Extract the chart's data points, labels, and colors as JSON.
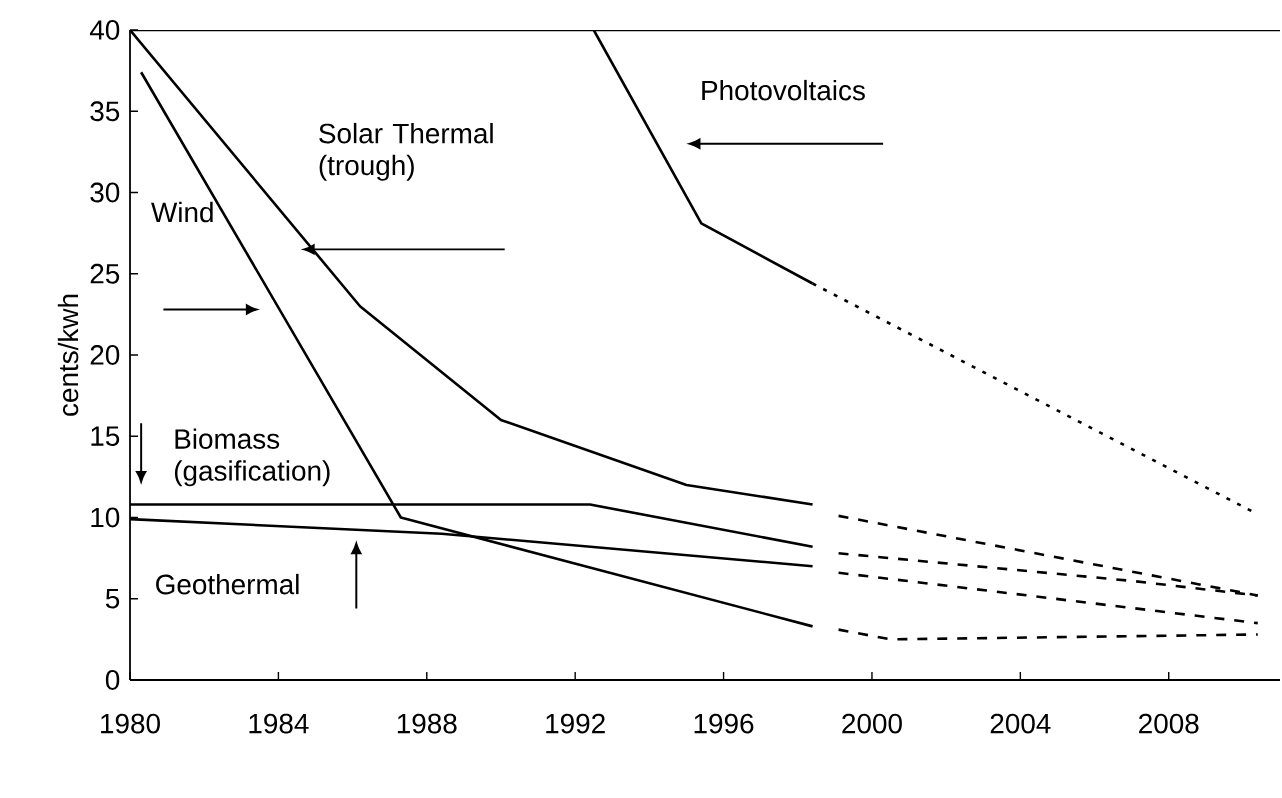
{
  "chart_data": {
    "type": "line",
    "ylabel": "cents/kwh",
    "xlim": [
      1980,
      2011
    ],
    "ylim": [
      0,
      40
    ],
    "xticks": [
      1980,
      1984,
      1988,
      1992,
      1996,
      2000,
      2004,
      2008
    ],
    "yticks": [
      0,
      5,
      10,
      15,
      20,
      25,
      30,
      35,
      40
    ],
    "marker": "none",
    "series": [
      {
        "name": "Solar Thermal (trough)",
        "color": "#000000",
        "line_style": "solid",
        "x": [
          1980,
          1986.2,
          1990,
          1995,
          1998.4
        ],
        "values": [
          40,
          23,
          16,
          12,
          10.8
        ]
      },
      {
        "name": "Wind",
        "color": "#000000",
        "line_style": "solid",
        "x": [
          1980.3,
          1987.3,
          1998.4
        ],
        "values": [
          37.4,
          10,
          3.3
        ]
      },
      {
        "name": "Biomass (gasification)",
        "color": "#000000",
        "line_style": "solid",
        "x": [
          1980,
          1992.4,
          1998.4
        ],
        "values": [
          10.8,
          10.8,
          8.2
        ]
      },
      {
        "name": "Geothermal",
        "color": "#000000",
        "line_style": "solid",
        "x": [
          1980,
          1988.4,
          1998.4
        ],
        "values": [
          9.9,
          9,
          7
        ]
      },
      {
        "name": "Photovoltaics",
        "color": "#000000",
        "line_style": "solid",
        "x": [
          1992.5,
          1995.4,
          1998.4
        ],
        "values": [
          40,
          28.1,
          24.4
        ]
      },
      {
        "color": "#000000",
        "line_style": "dashed",
        "x": [
          1999.1,
          2010.4
        ],
        "values": [
          10.1,
          5.2
        ]
      },
      {
        "color": "#000000",
        "line_style": "dashed",
        "x": [
          1999.1,
          2007,
          2010.4
        ],
        "values": [
          7.8,
          6.1,
          5.2
        ]
      },
      {
        "color": "#000000",
        "line_style": "dashed",
        "x": [
          1999.1,
          2010.4
        ],
        "values": [
          6.6,
          3.5
        ]
      },
      {
        "color": "#000000",
        "line_style": "dashed",
        "x": [
          1999.1,
          2000.5,
          2010.4
        ],
        "values": [
          3.1,
          2.5,
          2.8
        ]
      },
      {
        "color": "#000000",
        "line_style": "dotted",
        "x": [
          1998.4,
          2010.4
        ],
        "values": [
          24.4,
          10.2
        ]
      }
    ]
  }
}
